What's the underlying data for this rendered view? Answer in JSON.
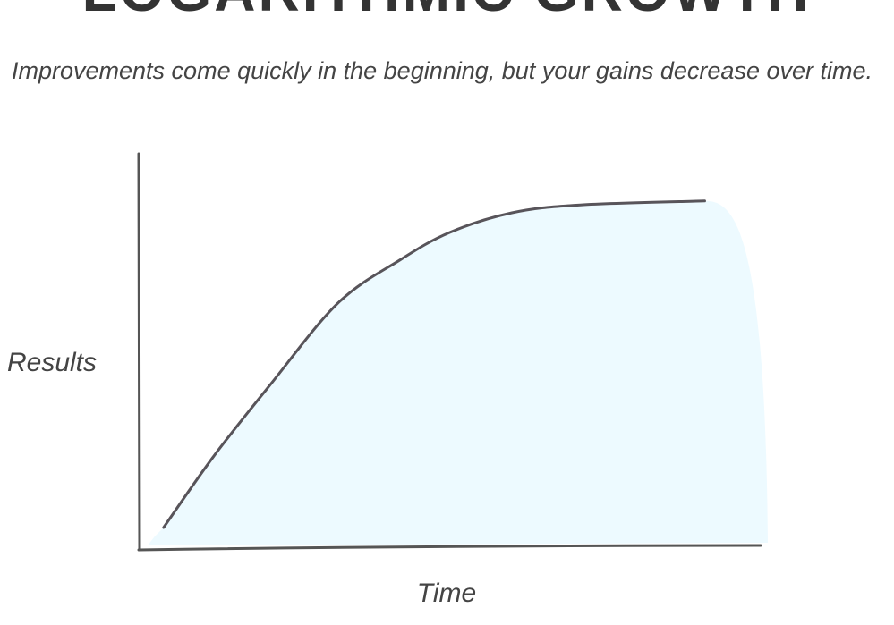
{
  "chart_data": {
    "type": "line",
    "title": "LOGARITHMIC GROWTH",
    "subtitle": "Improvements come quickly in the beginning, but your gains decrease over time.",
    "x_label": "Time",
    "y_label": "Results",
    "x": [
      4,
      12,
      21,
      32,
      42,
      50,
      60,
      71,
      91
    ],
    "values": [
      5,
      23,
      41,
      62,
      73,
      80,
      85,
      87,
      88
    ],
    "color": "#58545a",
    "fill_color": "#edfaff",
    "xlim": [
      0,
      100
    ],
    "ylim": [
      0,
      100
    ]
  }
}
